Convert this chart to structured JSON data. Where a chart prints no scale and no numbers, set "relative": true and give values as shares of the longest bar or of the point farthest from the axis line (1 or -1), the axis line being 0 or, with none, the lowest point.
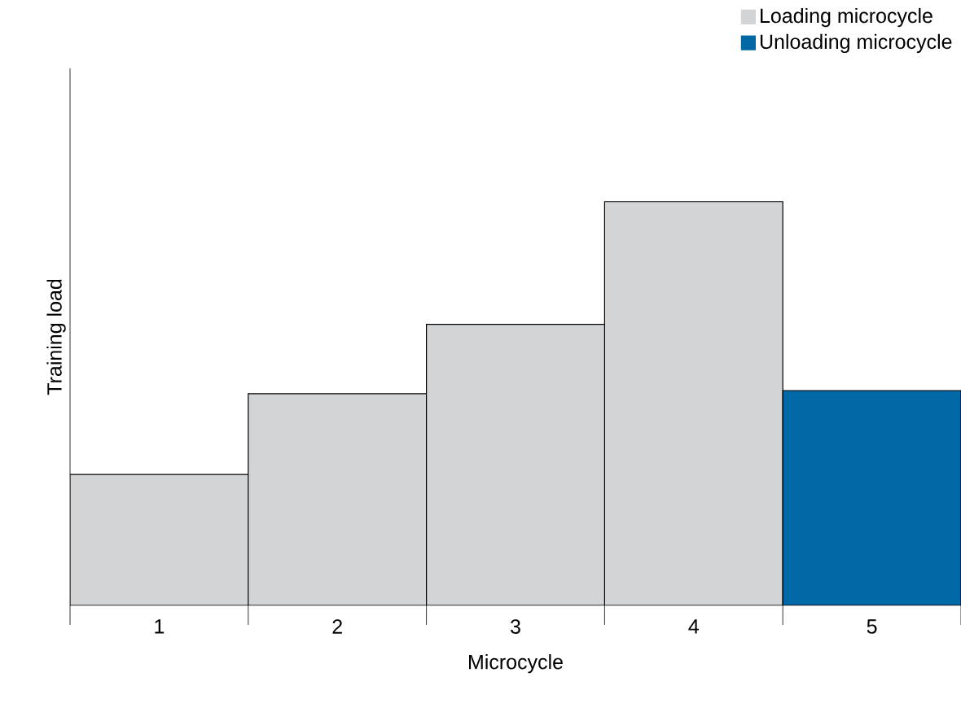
{
  "chart_data": {
    "type": "bar",
    "relative": true,
    "xlabel": "Microcycle",
    "ylabel": "Training load",
    "categories": [
      "1",
      "2",
      "3",
      "4",
      "5"
    ],
    "series": [
      {
        "name": "Loading microcycle",
        "color": "#d3d4d6",
        "values": [
          0.324,
          0.524,
          0.696,
          1,
          null
        ]
      },
      {
        "name": "Unloading microcycle",
        "color": "#0068a5",
        "values": [
          null,
          null,
          null,
          null,
          0.532
        ]
      }
    ],
    "legend": "top right"
  }
}
